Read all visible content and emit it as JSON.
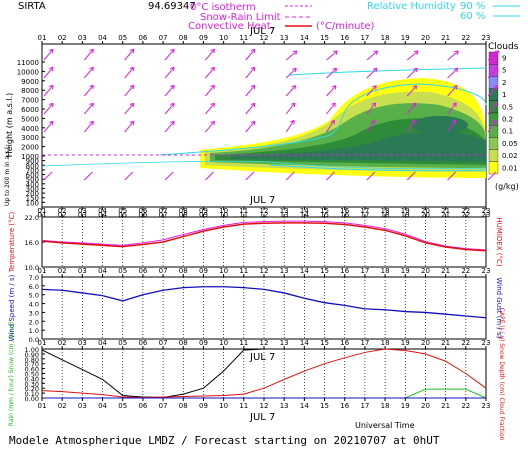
{
  "header": {
    "station": "SIRTA",
    "altitude": "94.69347",
    "legend_isotherm": "0°C isotherm",
    "legend_snow_rain": "Snow-Rain Limit",
    "legend_convective": "Convective Heat.",
    "legend_convective_unit": "(°C/minute)",
    "legend_rh": "Relative Humidity",
    "legend_rh_90": "90 %",
    "legend_rh_60": "60 %",
    "date_label": "JUL  7"
  },
  "colors": {
    "magenta": "#e020e0",
    "cyan": "#30d8e8",
    "red": "#e01010",
    "blue": "#1010c0",
    "green": "#20c020",
    "dark_green": "#1a6a2a"
  },
  "footer": {
    "title": "Modele Atmospherique LMDZ / Forecast starting on 20210707 at 0hUT",
    "xaxis_label": "Universal Time",
    "date_label": "JUL  7"
  },
  "colorbar": {
    "title": "Clouds",
    "unit": "(g/kg)",
    "labels": [
      "9",
      "5",
      "2",
      "1",
      "0.5",
      "0.2",
      "0.1",
      "0.05",
      "0.02",
      "0.01"
    ],
    "colors": [
      "#d028d0",
      "#c040e0",
      "#8a8aff",
      "#2a7a55",
      "#2e8b3a",
      "#3c9a3c",
      "#58b048",
      "#8cc850",
      "#c8e050",
      "#ffff10"
    ]
  },
  "chart_data": [
    {
      "type": "heatmap",
      "name": "clouds-wind-height",
      "x": [
        "01",
        "02",
        "03",
        "04",
        "05",
        "06",
        "07",
        "08",
        "09",
        "10",
        "11",
        "12",
        "13",
        "14",
        "15",
        "16",
        "17",
        "18",
        "19",
        "20",
        "21",
        "22",
        "23"
      ],
      "ylabel": "Height  (m a.s.l.)",
      "yticks": [
        "11000",
        "10000",
        "9000",
        "8000",
        "7000",
        "6000",
        "5000",
        "4000",
        "3000",
        "2000",
        "1000",
        "900",
        "800",
        "700",
        "600",
        "500",
        "400",
        "300",
        "200",
        "150",
        "100"
      ],
      "ylabel_bottom": "Up to 200 m in a.s.l.",
      "date_label": "JUL  7"
    },
    {
      "type": "line",
      "name": "temperature",
      "x": [
        1,
        2,
        3,
        4,
        5,
        6,
        7,
        8,
        9,
        10,
        11,
        12,
        13,
        14,
        15,
        16,
        17,
        18,
        19,
        20,
        21,
        22,
        23
      ],
      "ylim": [
        10,
        22
      ],
      "yticks": [
        "22.0",
        "16.0",
        "10.0"
      ],
      "ylabel_left": "Temperature (°C)",
      "ylabel_right": "HUMIDEX (°C)",
      "series": [
        {
          "name": "Temperature",
          "values": [
            16.2,
            15.8,
            15.5,
            15.2,
            14.9,
            15.4,
            16.0,
            17.3,
            18.6,
            19.6,
            20.3,
            20.5,
            20.6,
            20.6,
            20.5,
            20.2,
            19.6,
            18.8,
            17.5,
            15.8,
            14.8,
            14.2,
            13.9
          ]
        },
        {
          "name": "HUMIDEX",
          "values": [
            16.4,
            16.0,
            15.8,
            15.5,
            15.2,
            15.8,
            16.5,
            17.8,
            19.0,
            20.0,
            20.7,
            20.9,
            21.0,
            21.0,
            20.9,
            20.6,
            20.0,
            19.2,
            17.9,
            16.1,
            15.0,
            14.4,
            14.1
          ]
        }
      ]
    },
    {
      "type": "line",
      "name": "wind",
      "x": [
        1,
        2,
        3,
        4,
        5,
        6,
        7,
        8,
        9,
        10,
        11,
        12,
        13,
        14,
        15,
        16,
        17,
        18,
        19,
        20,
        21,
        22,
        23
      ],
      "ylim": [
        0,
        7
      ],
      "yticks": [
        "7.0",
        "6.0",
        "5.0",
        "4.0",
        "3.0",
        "2.0",
        "1.0",
        "0.0"
      ],
      "ylabel_left": "Wind Speed (m / s)",
      "ylabel_right": "Wind Gust (m / s)",
      "series": [
        {
          "name": "Wind Speed",
          "values": [
            5.6,
            5.5,
            5.2,
            4.9,
            4.3,
            5.0,
            5.5,
            5.8,
            5.9,
            5.9,
            5.8,
            5.6,
            5.2,
            4.6,
            4.1,
            3.8,
            3.4,
            3.3,
            3.1,
            3.0,
            2.8,
            2.6,
            2.4
          ]
        }
      ]
    },
    {
      "type": "line",
      "name": "precip-cape",
      "x": [
        1,
        2,
        3,
        4,
        5,
        6,
        7,
        8,
        9,
        10,
        11,
        12,
        13,
        14,
        15,
        16,
        17,
        18,
        19,
        20,
        21,
        22,
        23
      ],
      "ylim": [
        0,
        1
      ],
      "yticks": [
        "1.00",
        "0.90",
        "0.80",
        "0.70",
        "0.60",
        "0.50",
        "0.40",
        "0.30",
        "0.20",
        "0.10",
        "0.00"
      ],
      "ylabel_left": "Rain (mm / hour) Snow (cm / hour)",
      "ylabel_right": "CAPE (J / g) Snow Depth (cm) Cloud Fraction",
      "series": [
        {
          "name": "Cloud Fraction",
          "values": [
            0.98,
            0.78,
            0.58,
            0.38,
            0.05,
            0.02,
            0.01,
            0.08,
            0.2,
            0.55,
            0.98,
            1.0,
            1.0,
            1.0,
            1.0,
            1.0,
            1.0,
            1.0,
            1.0,
            1.0,
            1.0,
            1.0,
            1.0
          ]
        },
        {
          "name": "CAPE",
          "values": [
            0.15,
            0.13,
            0.1,
            0.07,
            0.02,
            0.01,
            0.02,
            0.03,
            0.04,
            0.05,
            0.08,
            0.2,
            0.38,
            0.55,
            0.7,
            0.82,
            0.93,
            1.0,
            0.97,
            0.9,
            0.75,
            0.5,
            0.2
          ]
        },
        {
          "name": "Rain",
          "values": [
            0,
            0,
            0,
            0,
            0,
            0,
            0,
            0,
            0,
            0,
            0,
            0,
            0,
            0,
            0,
            0,
            0,
            0,
            0,
            0.18,
            0.18,
            0.18,
            0
          ]
        }
      ]
    }
  ]
}
